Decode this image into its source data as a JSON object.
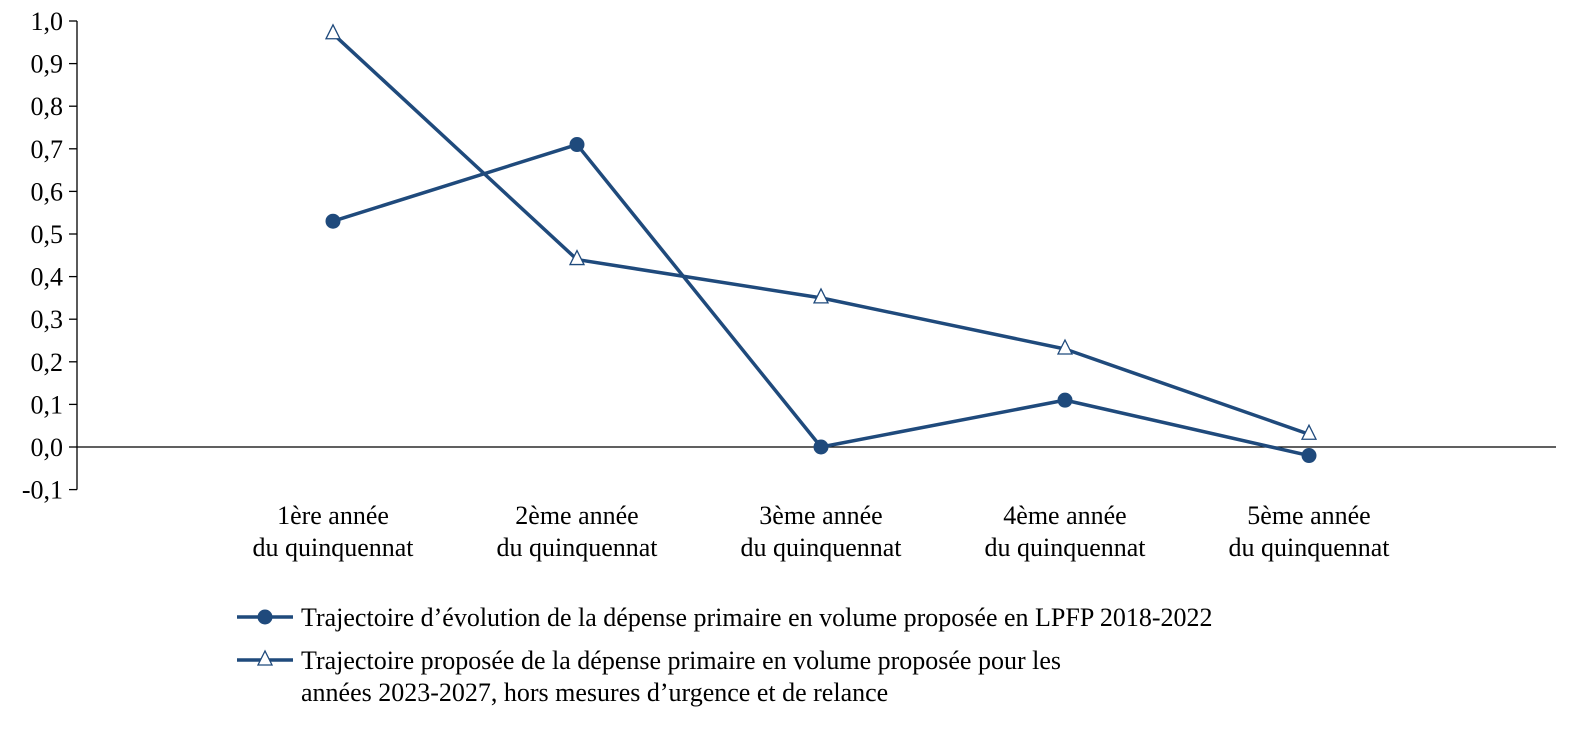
{
  "chart_data": {
    "type": "line",
    "title": "",
    "xlabel": "",
    "ylabel": "",
    "categories": [
      [
        "1ère année",
        "du quinquennat"
      ],
      [
        "2ème année",
        "du quinquennat"
      ],
      [
        "3ème année",
        "du quinquennat"
      ],
      [
        "4ème année",
        "du quinquennat"
      ],
      [
        "5ème année",
        "du quinquennat"
      ]
    ],
    "ylim": [
      -0.1,
      1.0
    ],
    "yticks": [
      "-0,1",
      "0,0",
      "0,1",
      "0,2",
      "0,3",
      "0,4",
      "0,5",
      "0,6",
      "0,7",
      "0,8",
      "0,9",
      "1,0"
    ],
    "ytick_values": [
      -0.1,
      0.0,
      0.1,
      0.2,
      0.3,
      0.4,
      0.5,
      0.6,
      0.7,
      0.8,
      0.9,
      1.0
    ],
    "grid": false,
    "legend_position": "bottom",
    "series": [
      {
        "name": "Trajectoire d’évolution de la dépense primaire en volume proposée en LPFP 2018-2022",
        "legend_lines": [
          "Trajectoire d’évolution de la dépense primaire en volume proposée en LPFP 2018-2022"
        ],
        "marker": "filled-circle",
        "color": "#1f4a7c",
        "values": [
          0.53,
          0.71,
          0.0,
          0.11,
          -0.02
        ]
      },
      {
        "name": "Trajectoire proposée de la dépense primaire en volume proposée pour les années 2023-2027, hors mesures d’urgence et de relance",
        "legend_lines": [
          "Trajectoire proposée de la dépense primaire en volume proposée pour les",
          "années 2023-2027, hors mesures d’urgence et de relance"
        ],
        "marker": "open-triangle",
        "color": "#1f4a7c",
        "values": [
          0.97,
          0.44,
          0.35,
          0.23,
          0.03
        ]
      }
    ]
  }
}
